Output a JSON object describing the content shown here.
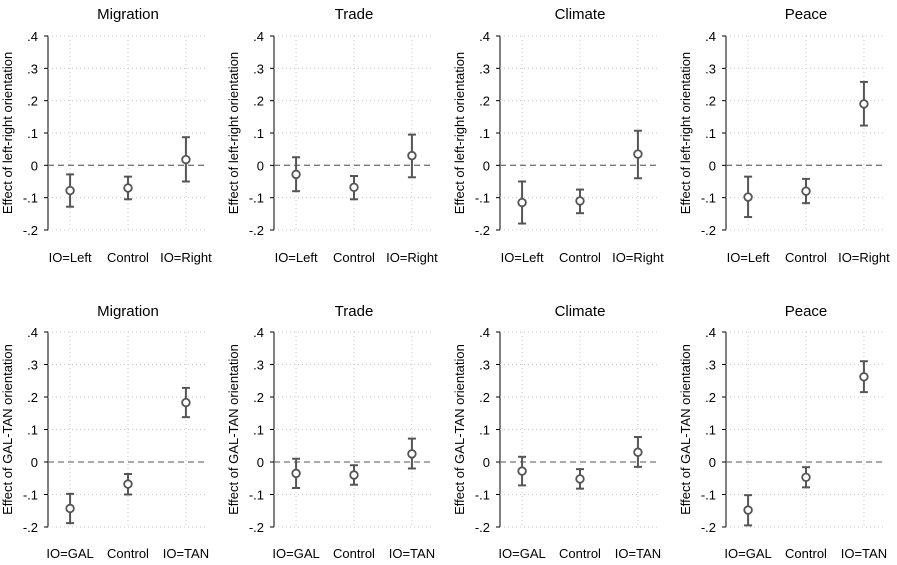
{
  "colors": {
    "marker": "#555555",
    "zero_line": "#777777",
    "grid": "#c8c8c8",
    "background": "#ffffff"
  },
  "chart_data": [
    {
      "type": "scatter",
      "title": "Migration",
      "ylabel": "Effect of left-right orientation",
      "categories": [
        "IO=Left",
        "Control",
        "IO=Right"
      ],
      "values": [
        -0.078,
        -0.07,
        0.018
      ],
      "ci_low": [
        -0.128,
        -0.105,
        -0.05
      ],
      "ci_high": [
        -0.028,
        -0.035,
        0.087
      ],
      "ylim": [
        -0.2,
        0.4
      ],
      "yticks": [
        ".4",
        ".3",
        ".2",
        ".1",
        "0",
        "-.1",
        "-.2"
      ],
      "grid": true,
      "reference_line": 0
    },
    {
      "type": "scatter",
      "title": "Trade",
      "ylabel": "Effect of left-right orientation",
      "categories": [
        "IO=Left",
        "Control",
        "IO=Right"
      ],
      "values": [
        -0.028,
        -0.068,
        0.03
      ],
      "ci_low": [
        -0.08,
        -0.105,
        -0.037
      ],
      "ci_high": [
        0.025,
        -0.033,
        0.095
      ],
      "ylim": [
        -0.2,
        0.4
      ],
      "yticks": [
        ".4",
        ".3",
        ".2",
        ".1",
        "0",
        "-.1",
        "-.2"
      ],
      "grid": true,
      "reference_line": 0
    },
    {
      "type": "scatter",
      "title": "Climate",
      "ylabel": "Effect of left-right orientation",
      "categories": [
        "IO=Left",
        "Control",
        "IO=Right"
      ],
      "values": [
        -0.115,
        -0.11,
        0.035
      ],
      "ci_low": [
        -0.18,
        -0.148,
        -0.04
      ],
      "ci_high": [
        -0.05,
        -0.075,
        0.107
      ],
      "ylim": [
        -0.2,
        0.4
      ],
      "yticks": [
        ".4",
        ".3",
        ".2",
        ".1",
        "0",
        "-.1",
        "-.2"
      ],
      "grid": true,
      "reference_line": 0
    },
    {
      "type": "scatter",
      "title": "Peace",
      "ylabel": "Effect of left-right orientation",
      "categories": [
        "IO=Left",
        "Control",
        "IO=Right"
      ],
      "values": [
        -0.098,
        -0.08,
        0.19
      ],
      "ci_low": [
        -0.16,
        -0.117,
        0.123
      ],
      "ci_high": [
        -0.035,
        -0.042,
        0.258
      ],
      "ylim": [
        -0.2,
        0.4
      ],
      "yticks": [
        ".4",
        ".3",
        ".2",
        ".1",
        "0",
        "-.1",
        "-.2"
      ],
      "grid": true,
      "reference_line": 0
    },
    {
      "type": "scatter",
      "title": "Migration",
      "ylabel": "Effect of GAL-TAN orientation",
      "categories": [
        "IO=GAL",
        "Control",
        "IO=TAN"
      ],
      "values": [
        -0.143,
        -0.068,
        0.183
      ],
      "ci_low": [
        -0.188,
        -0.1,
        0.138
      ],
      "ci_high": [
        -0.098,
        -0.037,
        0.228
      ],
      "ylim": [
        -0.2,
        0.4
      ],
      "yticks": [
        ".4",
        ".3",
        ".2",
        ".1",
        "0",
        "-.1",
        "-.2"
      ],
      "grid": true,
      "reference_line": 0
    },
    {
      "type": "scatter",
      "title": "Trade",
      "ylabel": "Effect of GAL-TAN orientation",
      "categories": [
        "IO=GAL",
        "Control",
        "IO=TAN"
      ],
      "values": [
        -0.035,
        -0.04,
        0.025
      ],
      "ci_low": [
        -0.08,
        -0.07,
        -0.02
      ],
      "ci_high": [
        0.01,
        -0.01,
        0.072
      ],
      "ylim": [
        -0.2,
        0.4
      ],
      "yticks": [
        ".4",
        ".3",
        ".2",
        ".1",
        "0",
        "-.1",
        "-.2"
      ],
      "grid": true,
      "reference_line": 0
    },
    {
      "type": "scatter",
      "title": "Climate",
      "ylabel": "Effect of GAL-TAN orientation",
      "categories": [
        "IO=GAL",
        "Control",
        "IO=TAN"
      ],
      "values": [
        -0.028,
        -0.052,
        0.03
      ],
      "ci_low": [
        -0.072,
        -0.082,
        -0.015
      ],
      "ci_high": [
        0.016,
        -0.022,
        0.077
      ],
      "ylim": [
        -0.2,
        0.4
      ],
      "yticks": [
        ".4",
        ".3",
        ".2",
        ".1",
        "0",
        "-.1",
        "-.2"
      ],
      "grid": true,
      "reference_line": 0
    },
    {
      "type": "scatter",
      "title": "Peace",
      "ylabel": "Effect of GAL-TAN orientation",
      "categories": [
        "IO=GAL",
        "Control",
        "IO=TAN"
      ],
      "values": [
        -0.148,
        -0.047,
        0.262
      ],
      "ci_low": [
        -0.195,
        -0.078,
        0.215
      ],
      "ci_high": [
        -0.102,
        -0.016,
        0.31
      ],
      "ylim": [
        -0.2,
        0.4
      ],
      "yticks": [
        ".4",
        ".3",
        ".2",
        ".1",
        "0",
        "-.1",
        "-.2"
      ],
      "grid": true,
      "reference_line": 0
    }
  ]
}
